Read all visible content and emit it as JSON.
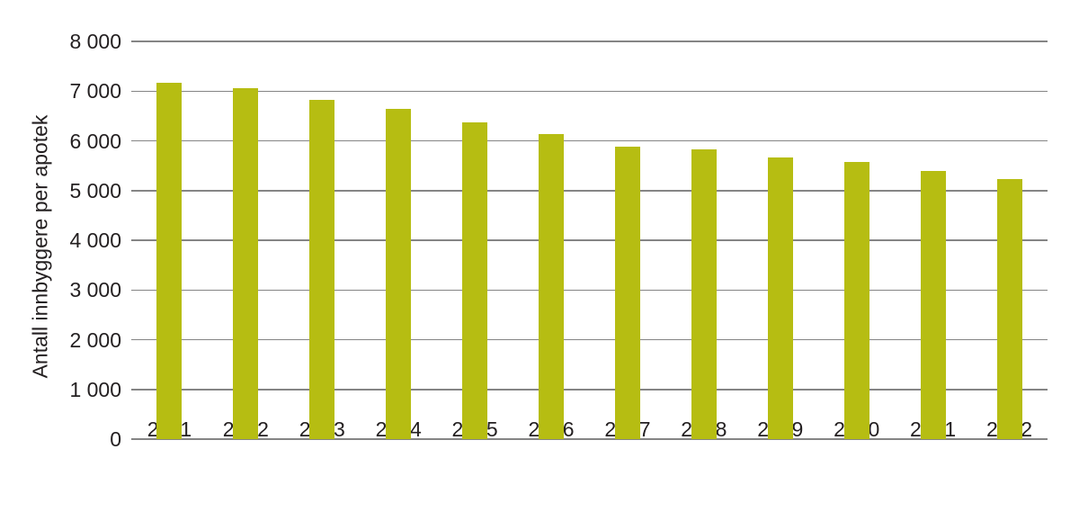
{
  "chart_data": {
    "type": "bar",
    "title": "",
    "ylabel": "Antall innbyggere per apotek",
    "xlabel": "",
    "categories": [
      "2011",
      "2012",
      "2013",
      "2014",
      "2015",
      "2016",
      "2017",
      "2018",
      "2019",
      "2020",
      "2021",
      "2022"
    ],
    "values": [
      7170,
      7060,
      6820,
      6640,
      6370,
      6140,
      5880,
      5820,
      5670,
      5580,
      5400,
      5230
    ],
    "ylim": [
      0,
      8000
    ],
    "ytick_step": 1000,
    "ytick_labels": [
      "0",
      "1 000",
      "2 000",
      "3 000",
      "4 000",
      "5 000",
      "6 000",
      "7 000",
      "8 000"
    ],
    "grid": true,
    "legend_position": "none",
    "colors": {
      "bar": "#b6bd12",
      "gridline": "#858585",
      "text": "#231f20",
      "background": "#ffffff"
    }
  }
}
